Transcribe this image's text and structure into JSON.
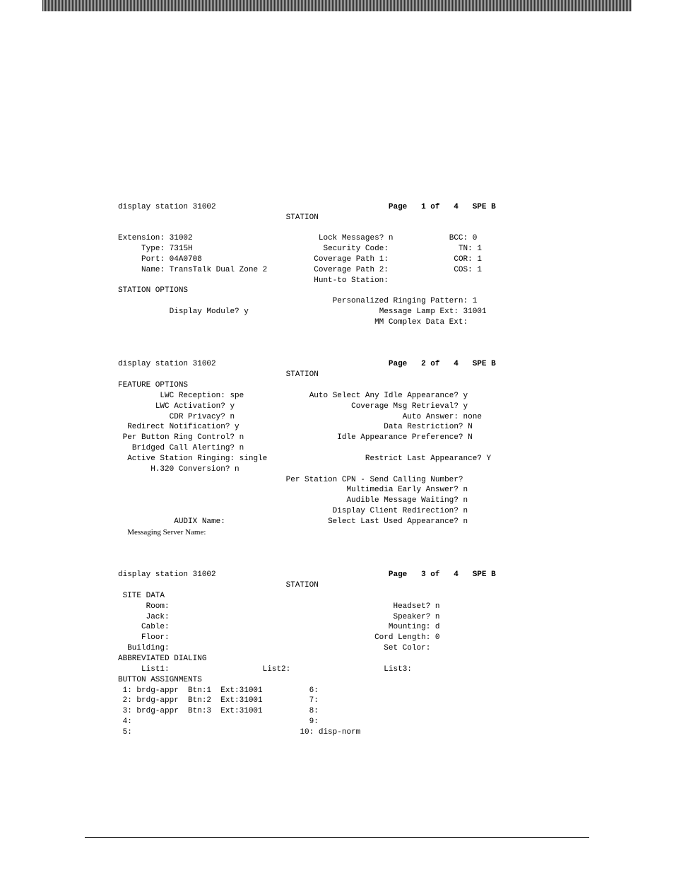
{
  "p1": {
    "header_cmd": "display station 31002",
    "header_page": "Page   1 of   4   SPE B",
    "section": "STATION",
    "extension_lbl": "Extension:",
    "extension_val": "31002",
    "type_lbl": "Type:",
    "type_val": "7315H",
    "port_lbl": "Port:",
    "port_val": "04A0708",
    "name_lbl": "Name:",
    "name_val": "TransTalk Dual Zone 2",
    "lock_lbl": "Lock Messages?",
    "lock_val": "n",
    "sec_lbl": "Security Code:",
    "sec_val": "",
    "cov1_lbl": "Coverage Path 1:",
    "cov1_val": "",
    "cov2_lbl": "Coverage Path 2:",
    "cov2_val": "",
    "hunt_lbl": "Hunt-to Station:",
    "bcc_lbl": "BCC:",
    "bcc_val": "0",
    "tn_lbl": "TN:",
    "tn_val": "1",
    "cor_lbl": "COR:",
    "cor_val": "1",
    "cos_lbl": "COS:",
    "cos_val": "1",
    "opts_hdr": "STATION OPTIONS",
    "prp_lbl": "Personalized Ringing Pattern:",
    "prp_val": "1",
    "disp_lbl": "Display Module?",
    "disp_val": "y",
    "mle_lbl": "Message Lamp Ext:",
    "mle_val": "31001",
    "mmc_lbl": "MM Complex Data Ext:",
    "mmc_val": ""
  },
  "p2": {
    "header_cmd": "display station 31002",
    "header_page": "Page   2 of   4   SPE B",
    "section": "STATION",
    "feat_hdr": "FEATURE OPTIONS",
    "lwc_r_lbl": "LWC Reception:",
    "lwc_r_val": "spe",
    "lwc_a_lbl": "LWC Activation?",
    "lwc_a_val": "y",
    "cdr_lbl": "CDR Privacy?",
    "cdr_val": "n",
    "redir_lbl": "Redirect Notification?",
    "redir_val": "y",
    "perbtn_lbl": "Per Button Ring Control?",
    "perbtn_val": "n",
    "brdg_lbl": "Bridged Call Alerting?",
    "brdg_val": "n",
    "asr_lbl": "Active Station Ringing:",
    "asr_val": "single",
    "h320_lbl": "H.320 Conversion?",
    "h320_val": "n",
    "autoidle_lbl": "Auto Select Any Idle Appearance?",
    "autoidle_val": "y",
    "covmsg_lbl": "Coverage Msg Retrieval?",
    "covmsg_val": "y",
    "autoans_lbl": "Auto Answer:",
    "autoans_val": "none",
    "datar_lbl": "Data Restriction?",
    "datar_val": "N",
    "idleap_lbl": "Idle Appearance Preference?",
    "idleap_val": "N",
    "rla_lbl": "Restrict Last Appearance?",
    "rla_val": "Y",
    "percpn_lbl": "Per Station CPN - Send Calling Number?",
    "mea_lbl": "Multimedia Early Answer?",
    "mea_val": "n",
    "amw_lbl": "Audible Message Waiting?",
    "amw_val": "n",
    "dcr_lbl": "Display Client Redirection?",
    "dcr_val": "n",
    "audix_lbl": "AUDIX Name:",
    "slua_lbl": "Select Last Used Appearance?",
    "slua_val": "n",
    "msgsrv_lbl": "Messaging Server Name:"
  },
  "p3": {
    "header_cmd": "display station 31002",
    "header_page": "Page   3 of   4   SPE B",
    "section": "STATION",
    "site_hdr": " SITE DATA",
    "room_lbl": "Room:",
    "jack_lbl": "Jack:",
    "cable_lbl": "Cable:",
    "floor_lbl": "Floor:",
    "bldg_lbl": "Building:",
    "headset_lbl": "Headset?",
    "headset_val": "n",
    "speaker_lbl": "Speaker?",
    "speaker_val": "n",
    "mount_lbl": "Mounting:",
    "mount_val": "d",
    "cord_lbl": "Cord Length:",
    "cord_val": "0",
    "color_lbl": "Set Color:",
    "color_val": "",
    "abbr_hdr": "ABBREVIATED DIALING",
    "list1_lbl": "List1:",
    "list2_lbl": "List2:",
    "list3_lbl": "List3:",
    "btn_hdr": "BUTTON ASSIGNMENTS",
    "b1": " 1: brdg-appr  Btn:1  Ext:31001",
    "b2": " 2: brdg-appr  Btn:2  Ext:31001",
    "b3": " 3: brdg-appr  Btn:3  Ext:31001",
    "b4": " 4:",
    "b5": " 5:",
    "b6": " 6:",
    "b7": " 7:",
    "b8": " 8:",
    "b9": " 9:",
    "b10": "10: disp-norm"
  }
}
